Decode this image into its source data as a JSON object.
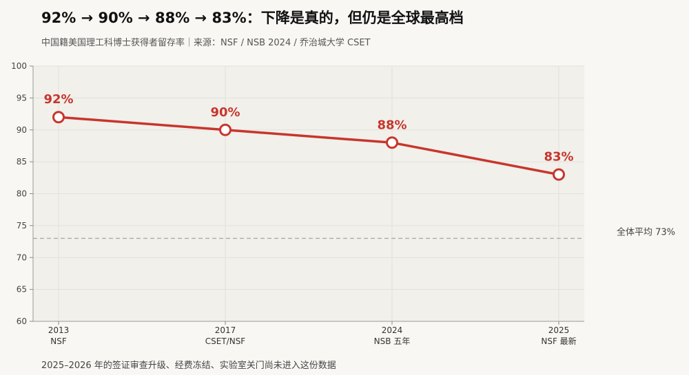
{
  "header": {
    "title": "92% → 90% → 88% → 83%：下降是真的，但仍是全球最高档",
    "subtitle": "中国籍美国理工科博士获得者留存率｜来源：NSF / NSB 2024 / 乔治城大学 CSET"
  },
  "footnote": "2025–2026 年的签证审查升级、经费冻结、实验室关门尚未进入这份数据",
  "chart_data": {
    "type": "line",
    "title": "92% → 90% → 88% → 83%：下降是真的，但仍是全球最高档",
    "categories": [
      "2013",
      "2017",
      "2024",
      "2025"
    ],
    "category_sublabels": [
      "NSF",
      "CSET/NSF",
      "NSB 五年",
      "NSF 最新"
    ],
    "series": [
      {
        "values": [
          92,
          90,
          88,
          83
        ],
        "data_labels": [
          "92%",
          "90%",
          "88%",
          "83%"
        ],
        "color": "#c8352c"
      }
    ],
    "ylim": [
      60,
      100
    ],
    "yticks": [
      "60",
      "65",
      "70",
      "75",
      "80",
      "85",
      "90",
      "95",
      "100"
    ],
    "reference_line": {
      "value": 73,
      "label": "全体平均 73%",
      "color": "#aaaaaa"
    },
    "grid": true,
    "plot_background": "#f1f0eb"
  }
}
